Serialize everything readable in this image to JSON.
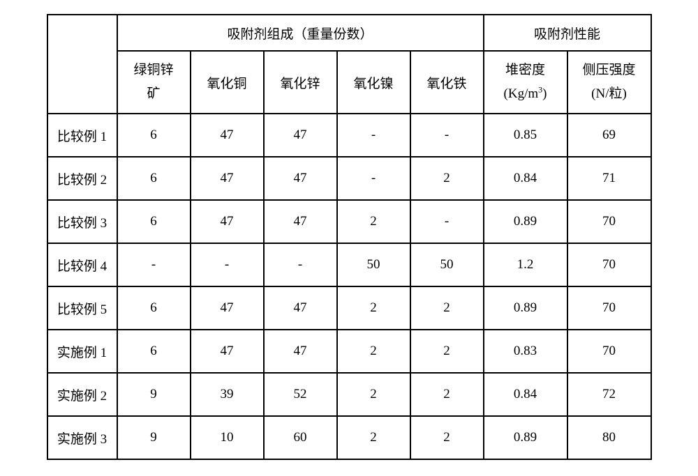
{
  "table": {
    "type": "table",
    "background_color": "#ffffff",
    "border_color": "#000000",
    "font_color": "#000000",
    "base_fontsize": 19,
    "header_group_1": "吸附剂组成（重量份数）",
    "header_group_2": "吸附剂性能",
    "subheaders": {
      "col1_line1": "绿铜锌",
      "col1_line2": "矿",
      "col2": "氧化铜",
      "col3": "氧化锌",
      "col4": "氧化镍",
      "col5": "氧化铁",
      "col6_line1": "堆密度",
      "col6_line2_pre": "(Kg/m",
      "col6_line2_sup": "3",
      "col6_line2_post": ")",
      "col7_line1": "侧压强度",
      "col7_line2": "(N/粒)"
    },
    "rows": [
      {
        "label": "比较例 1",
        "c1": "6",
        "c2": "47",
        "c3": "47",
        "c4": "-",
        "c5": "-",
        "c6": "0.85",
        "c7": "69"
      },
      {
        "label": "比较例 2",
        "c1": "6",
        "c2": "47",
        "c3": "47",
        "c4": "-",
        "c5": "2",
        "c6": "0.84",
        "c7": "71"
      },
      {
        "label": "比较例 3",
        "c1": "6",
        "c2": "47",
        "c3": "47",
        "c4": "2",
        "c5": "-",
        "c6": "0.89",
        "c7": "70"
      },
      {
        "label": "比较例 4",
        "c1": "-",
        "c2": "-",
        "c3": "-",
        "c4": "50",
        "c5": "50",
        "c6": "1.2",
        "c7": "70"
      },
      {
        "label": "比较例 5",
        "c1": "6",
        "c2": "47",
        "c3": "47",
        "c4": "2",
        "c5": "2",
        "c6": "0.89",
        "c7": "70"
      },
      {
        "label": "实施例 1",
        "c1": "6",
        "c2": "47",
        "c3": "47",
        "c4": "2",
        "c5": "2",
        "c6": "0.83",
        "c7": "70"
      },
      {
        "label": "实施例 2",
        "c1": "9",
        "c2": "39",
        "c3": "52",
        "c4": "2",
        "c5": "2",
        "c6": "0.84",
        "c7": "72"
      },
      {
        "label": "实施例 3",
        "c1": "9",
        "c2": "10",
        "c3": "60",
        "c4": "2",
        "c5": "2",
        "c6": "0.89",
        "c7": "80"
      }
    ],
    "column_widths": {
      "row_label": 100,
      "composition": 105,
      "performance": 120
    }
  }
}
